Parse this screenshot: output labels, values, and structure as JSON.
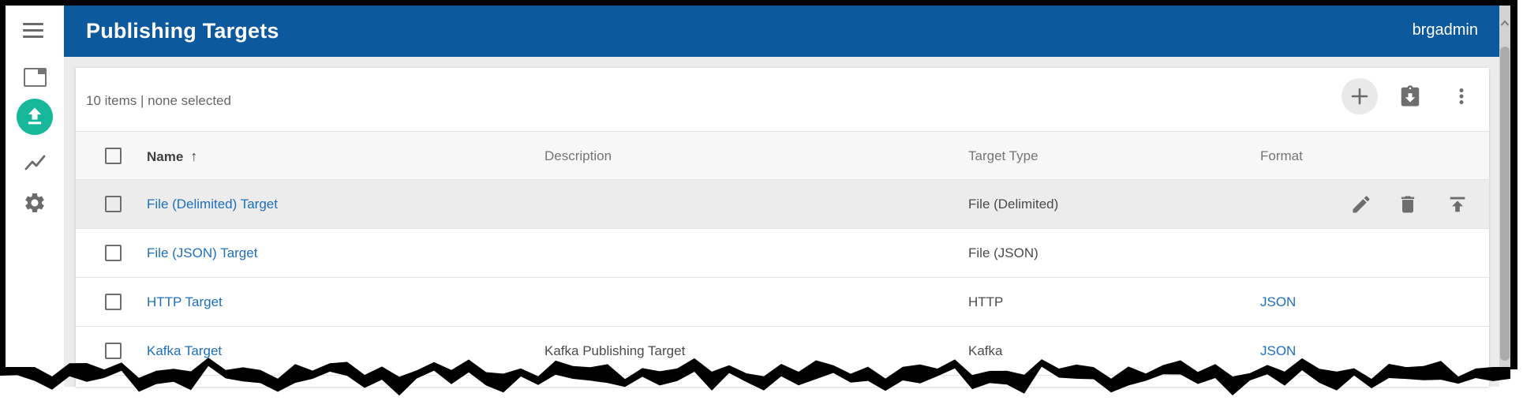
{
  "app": {
    "title": "Publishing Targets",
    "user": "brgadmin"
  },
  "sidebar": {
    "items": [
      {
        "id": "menu",
        "icon": "hamburger-icon"
      },
      {
        "id": "windows",
        "icon": "window-icon"
      },
      {
        "id": "publish",
        "icon": "upload-icon",
        "active": true
      },
      {
        "id": "monitor",
        "icon": "chart-icon"
      },
      {
        "id": "settings",
        "icon": "gear-icon"
      }
    ]
  },
  "toolbar": {
    "status": "10 items | none selected",
    "actions": [
      {
        "id": "add",
        "icon": "plus-icon"
      },
      {
        "id": "import",
        "icon": "clipboard-import-icon"
      },
      {
        "id": "more",
        "icon": "more-vert-icon"
      }
    ]
  },
  "table": {
    "sort_indicator": "↑",
    "columns": [
      {
        "label": "Name",
        "sorted": "asc"
      },
      {
        "label": "Description"
      },
      {
        "label": "Target Type"
      },
      {
        "label": "Format"
      }
    ],
    "rows": [
      {
        "name": "File (Delimited) Target",
        "description": "",
        "target_type": "File (Delimited)",
        "format": "",
        "highlighted": true,
        "actions": [
          "edit",
          "delete",
          "upload"
        ]
      },
      {
        "name": "File (JSON) Target",
        "description": "",
        "target_type": "File (JSON)",
        "format": ""
      },
      {
        "name": "HTTP Target",
        "description": "",
        "target_type": "HTTP",
        "format": "JSON"
      },
      {
        "name": "Kafka Target",
        "description": "Kafka Publishing Target",
        "target_type": "Kafka",
        "format": "JSON"
      }
    ]
  },
  "colors": {
    "appbar_blue": "#0d599e",
    "accent_teal": "#17b79c",
    "link_blue": "#1d6fbd",
    "icon_gray": "#6e6e6e",
    "row_highlight": "#ececec"
  }
}
